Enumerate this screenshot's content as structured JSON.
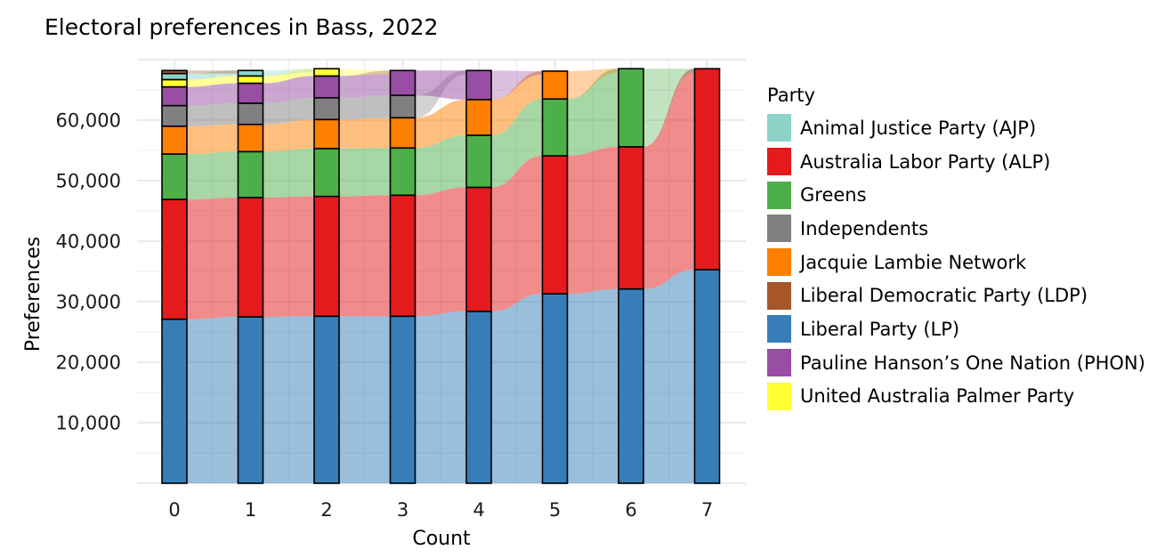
{
  "chart_data": {
    "type": "bar",
    "subtype": "stacked alluvial",
    "title": "Electoral preferences in Bass, 2022",
    "xlabel": "Count",
    "ylabel": "Preferences",
    "categories": [
      "0",
      "1",
      "2",
      "3",
      "4",
      "5",
      "6",
      "7"
    ],
    "ylim": [
      0,
      69000
    ],
    "yticks": [
      10000,
      20000,
      30000,
      40000,
      50000,
      60000
    ],
    "ytick_labels": [
      "10,000",
      "20,000",
      "30,000",
      "40,000",
      "50,000",
      "60,000"
    ],
    "grid": true,
    "legend_title": "Party",
    "legend_position": "right",
    "series": [
      {
        "name": "Liberal Party (LP)",
        "color": "#377EB8",
        "values": [
          27100,
          27500,
          27600,
          27600,
          28400,
          31300,
          32100,
          35300
        ]
      },
      {
        "name": "Australia Labor Party (ALP)",
        "color": "#E41A1C",
        "values": [
          19800,
          19700,
          19800,
          20000,
          20500,
          22800,
          23500,
          33200
        ]
      },
      {
        "name": "Greens",
        "color": "#4DAF4A",
        "values": [
          7500,
          7600,
          7900,
          7800,
          8600,
          9400,
          12900,
          0
        ]
      },
      {
        "name": "Jacquie Lambie Network",
        "color": "#FF7F00",
        "values": [
          4600,
          4500,
          4800,
          5000,
          5900,
          4600,
          0,
          0
        ]
      },
      {
        "name": "Independents",
        "color": "#808080",
        "values": [
          3400,
          3500,
          3600,
          3700,
          0,
          0,
          0,
          0
        ]
      },
      {
        "name": "Pauline Hanson’s One Nation (PHON)",
        "color": "#984EA3",
        "values": [
          3100,
          3300,
          3600,
          4100,
          4800,
          0,
          0,
          0
        ]
      },
      {
        "name": "United Australia Palmer Party",
        "color": "#FFFF33",
        "values": [
          1200,
          1200,
          1200,
          0,
          0,
          0,
          0,
          0
        ]
      },
      {
        "name": "Animal Justice Party (AJP)",
        "color": "#8DD3C7",
        "values": [
          1000,
          900,
          0,
          0,
          0,
          0,
          0,
          0
        ]
      },
      {
        "name": "Liberal Democratic Party (LDP)",
        "color": "#A65628",
        "values": [
          500,
          0,
          0,
          0,
          0,
          0,
          0,
          0
        ]
      }
    ],
    "legend_order": [
      "Animal Justice Party (AJP)",
      "Australia Labor Party (ALP)",
      "Greens",
      "Independents",
      "Jacquie Lambie Network",
      "Liberal Democratic Party (LDP)",
      "Liberal Party (LP)",
      "Pauline Hanson’s One Nation (PHON)",
      "United Australia Palmer Party"
    ]
  }
}
